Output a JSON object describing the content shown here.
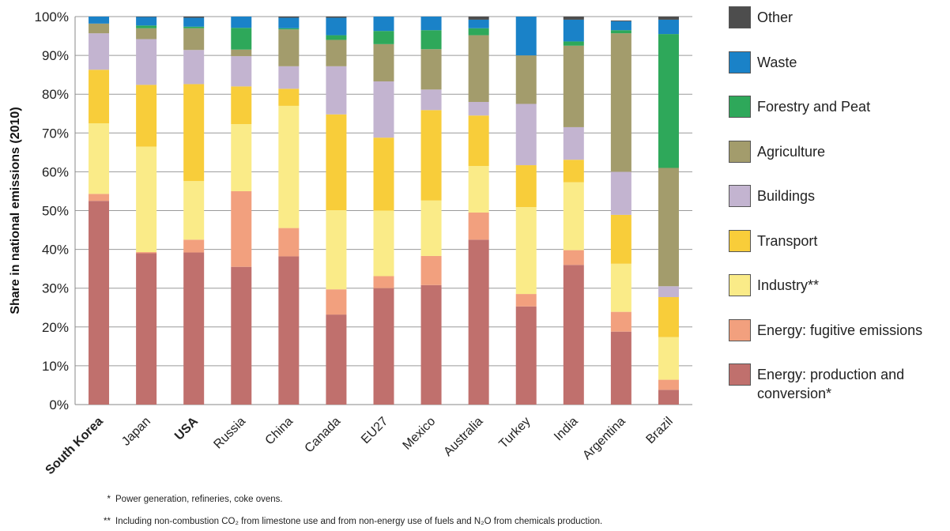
{
  "chart_data": {
    "type": "bar",
    "stacked": true,
    "ylabel": "Share in national emissions (2010)",
    "xlabel": "",
    "ylim": [
      0,
      100
    ],
    "yticks": [
      "0%",
      "10%",
      "20%",
      "30%",
      "40%",
      "50%",
      "60%",
      "70%",
      "80%",
      "90%",
      "100%"
    ],
    "grid": true,
    "legend_position": "right",
    "categories": [
      "South Korea",
      "Japan",
      "USA",
      "Russia",
      "China",
      "Canada",
      "EU27",
      "Mexico",
      "Australia",
      "Turkey",
      "India",
      "Argentina",
      "Brazil"
    ],
    "bold_categories": [
      "South Korea",
      "USA"
    ],
    "series": [
      {
        "name": "Energy: production and conversion*",
        "color": "#c0706d",
        "values": [
          52.5,
          39,
          39.2,
          35.5,
          38.2,
          23.2,
          30,
          30.8,
          42.5,
          25.3,
          36,
          18.8,
          3.8
        ]
      },
      {
        "name": "Energy: fugitive emissions",
        "color": "#f2a07e",
        "values": [
          1.8,
          0.3,
          3.3,
          19.5,
          7.3,
          6.5,
          3.1,
          7.5,
          7.0,
          3.2,
          3.8,
          5.1,
          2.6
        ]
      },
      {
        "name": "Industry**",
        "color": "#faeb88",
        "values": [
          18.2,
          27.2,
          15.1,
          17.3,
          31.5,
          20.4,
          16.9,
          14.3,
          12.0,
          22.4,
          17.5,
          12.4,
          11.0
        ]
      },
      {
        "name": "Transport",
        "color": "#f8cd3a",
        "values": [
          13.8,
          15.9,
          25.0,
          9.7,
          4.4,
          24.7,
          18.8,
          23.3,
          13.0,
          10.8,
          5.8,
          12.6,
          10.3
        ]
      },
      {
        "name": "Buildings",
        "color": "#c3b4d0",
        "values": [
          9.4,
          11.8,
          8.8,
          7.8,
          5.8,
          12.4,
          14.5,
          5.3,
          3.5,
          15.8,
          8.4,
          11.1,
          2.8
        ]
      },
      {
        "name": "Agriculture",
        "color": "#a39c6c",
        "values": [
          2.5,
          2.8,
          5.6,
          1.7,
          9.5,
          6.8,
          9.6,
          10.4,
          17.2,
          12.5,
          21.0,
          35.7,
          30.5
        ]
      },
      {
        "name": "Forestry and Peat",
        "color": "#2ea85a",
        "values": [
          0,
          0.7,
          0.4,
          5.6,
          0.3,
          1.2,
          3.4,
          4.9,
          1.8,
          0,
          1.1,
          0.8,
          34.5
        ]
      },
      {
        "name": "Waste",
        "color": "#1a82c8",
        "values": [
          1.8,
          2.2,
          2.3,
          2.9,
          2.7,
          4.5,
          3.7,
          3.5,
          2.2,
          10.0,
          5.6,
          2.3,
          3.7
        ]
      },
      {
        "name": "Other",
        "color": "#4d4d4d",
        "values": [
          0,
          0.1,
          0.3,
          0,
          0.3,
          0.3,
          0,
          0,
          0.8,
          0,
          0.8,
          0.2,
          0.8
        ]
      }
    ],
    "legend_order": [
      "Other",
      "Waste",
      "Forestry and Peat",
      "Agriculture",
      "Buildings",
      "Transport",
      "Industry**",
      "Energy: fugitive emissions",
      "Energy: production and conversion*"
    ]
  },
  "footnotes": [
    {
      "mark": "*",
      "text": "Power generation, refineries, coke ovens."
    },
    {
      "mark": "**",
      "text": "Including non-combustion CO₂ from limestone use and from non-energy use of fuels and N₂O from chemicals production."
    }
  ]
}
